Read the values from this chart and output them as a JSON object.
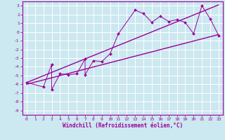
{
  "xlabel": "Windchill (Refroidissement éolien,°C)",
  "bg_color": "#cce8f0",
  "grid_color": "#b0d8e0",
  "line_color": "#990099",
  "xlim": [
    -0.5,
    23.5
  ],
  "ylim": [
    -9.5,
    3.5
  ],
  "xticks": [
    0,
    1,
    2,
    3,
    4,
    5,
    6,
    7,
    8,
    9,
    10,
    11,
    12,
    13,
    14,
    15,
    16,
    17,
    18,
    19,
    20,
    21,
    22,
    23
  ],
  "yticks": [
    -9,
    -8,
    -7,
    -6,
    -5,
    -4,
    -3,
    -2,
    -1,
    0,
    1,
    2,
    3
  ],
  "line1_x": [
    0,
    23
  ],
  "line1_y": [
    -6.0,
    -0.3
  ],
  "line2_x": [
    0,
    23
  ],
  "line2_y": [
    -5.8,
    3.1
  ],
  "zigzag_x": [
    0,
    2,
    3,
    3,
    4,
    5,
    6,
    7,
    7,
    8,
    9,
    10,
    11,
    13,
    14,
    15,
    16,
    17,
    18,
    19,
    20,
    21,
    22,
    23
  ],
  "zigzag_y": [
    -5.8,
    -6.3,
    -3.7,
    -6.6,
    -4.8,
    -4.9,
    -4.8,
    -3.1,
    -4.9,
    -3.3,
    -3.4,
    -2.5,
    -0.2,
    2.5,
    2.1,
    1.1,
    1.8,
    1.2,
    1.4,
    1.1,
    -0.2,
    3.0,
    1.5,
    -0.4
  ],
  "tick_fontsize": 4.5,
  "xlabel_fontsize": 5.5
}
